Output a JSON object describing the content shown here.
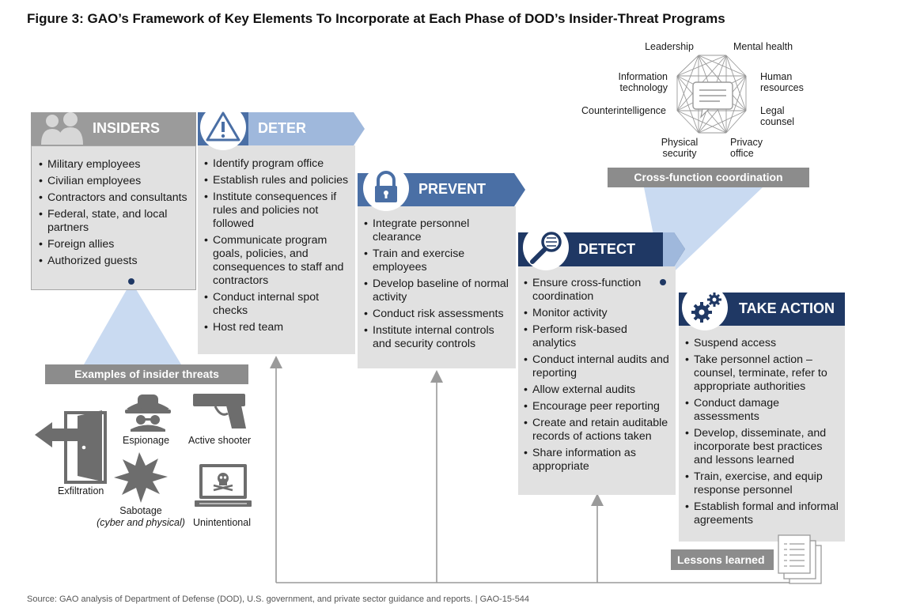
{
  "figure_title": "Figure 3: GAO’s Framework of Key Elements To Incorporate at Each Phase of DOD’s Insider-Threat Programs",
  "phases": {
    "insiders": {
      "label": "INSIDERS",
      "items": [
        "Military employees",
        "Civilian employees",
        "Contractors and consultants",
        "Federal, state, and local partners",
        "Foreign allies",
        "Authorized guests"
      ]
    },
    "deter": {
      "label": "DETER",
      "items": [
        "Identify program office",
        "Establish rules and policies",
        "Institute consequences if rules and policies not followed",
        "Communicate program goals, policies, and consequences to staff and contractors",
        "Conduct internal spot checks",
        "Host red team"
      ]
    },
    "prevent": {
      "label": "PREVENT",
      "items": [
        "Integrate personnel clearance",
        "Train and exercise employees",
        "Develop baseline of normal activity",
        "Conduct risk assessments",
        "Institute internal controls and security controls"
      ]
    },
    "detect": {
      "label": "DETECT",
      "items": [
        "Ensure cross-function coordination",
        "Monitor activity",
        "Perform risk-based analytics",
        "Conduct internal audits and reporting",
        "Allow external audits",
        "Encourage peer reporting",
        "Create and retain auditable records of actions taken",
        "Share information as appropriate"
      ]
    },
    "take_action": {
      "label": "TAKE ACTION",
      "items": [
        "Suspend access",
        "Take personnel action – counsel, terminate, refer to appropriate authorities",
        "Conduct damage assessments",
        "Develop, disseminate, and incorporate best practices and lessons learned",
        "Train, exercise, and equip response personnel",
        "Establish formal and informal agreements"
      ]
    }
  },
  "examples": {
    "title": "Examples of insider threats",
    "exfiltration": "Exfiltration",
    "espionage": "Espionage",
    "active_shooter": "Active shooter",
    "sabotage": "Sabotage",
    "sabotage_note": "(cyber and physical)",
    "unintentional": "Unintentional"
  },
  "cross_function": {
    "title": "Cross-function coordination",
    "leadership": "Leadership",
    "mental_health": "Mental health",
    "information_technology": "Information technology",
    "human_resources": "Human resources",
    "counterintelligence": "Counterintelligence",
    "legal_counsel": "Legal counsel",
    "physical_security": "Physical security",
    "privacy_office": "Privacy office"
  },
  "lessons_learned": "Lessons learned",
  "footer_source": "Source: GAO analysis of Department of Defense (DOD), U.S. government, and private sector guidance and reports. | GAO-15-544",
  "colors": {
    "navy": "#1f3864",
    "blue_mid": "#4a6fa5",
    "blue_light": "#9fb8dc",
    "beam": "#c9daf1",
    "panel": "#e1e1e1",
    "insiders_header": "#9b9b9b",
    "tag_gray": "#8c8c8c"
  }
}
